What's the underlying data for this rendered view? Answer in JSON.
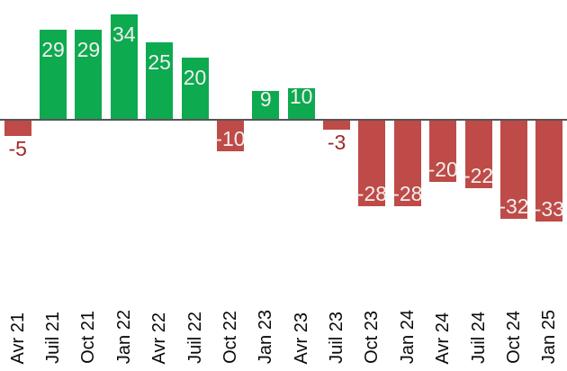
{
  "chart_data": {
    "type": "bar",
    "title": "",
    "xlabel": "",
    "ylabel": "",
    "categories": [
      "Avr 21",
      "Juil 21",
      "Oct 21",
      "Jan 22",
      "Avr 22",
      "Juil 22",
      "Oct 22",
      "Jan 23",
      "Avr 23",
      "Juil 23",
      "Oct 23",
      "Jan 24",
      "Avr 24",
      "Juil 24",
      "Oct 24",
      "Jan 25"
    ],
    "values": [
      -5,
      29,
      29,
      34,
      25,
      20,
      -10,
      9,
      10,
      -3,
      -28,
      -28,
      -20,
      -22,
      -32,
      -33
    ],
    "ylim": [
      -40,
      40
    ],
    "baseline": 0,
    "grid": false,
    "legend": false,
    "y_axis_visible": false,
    "tick_rotation_deg": -90,
    "data_label_rule": "inside-end when bar fits label, outside-end below bar otherwise",
    "colors": {
      "positive": "#0DAA50",
      "negative": "#BE4B48",
      "label_inside": "#F2EFEE",
      "label_outside": "#9E2B25",
      "axis_line": "#565656",
      "tick_label": "#0A0A0A",
      "background": "#FFFFFF"
    }
  }
}
